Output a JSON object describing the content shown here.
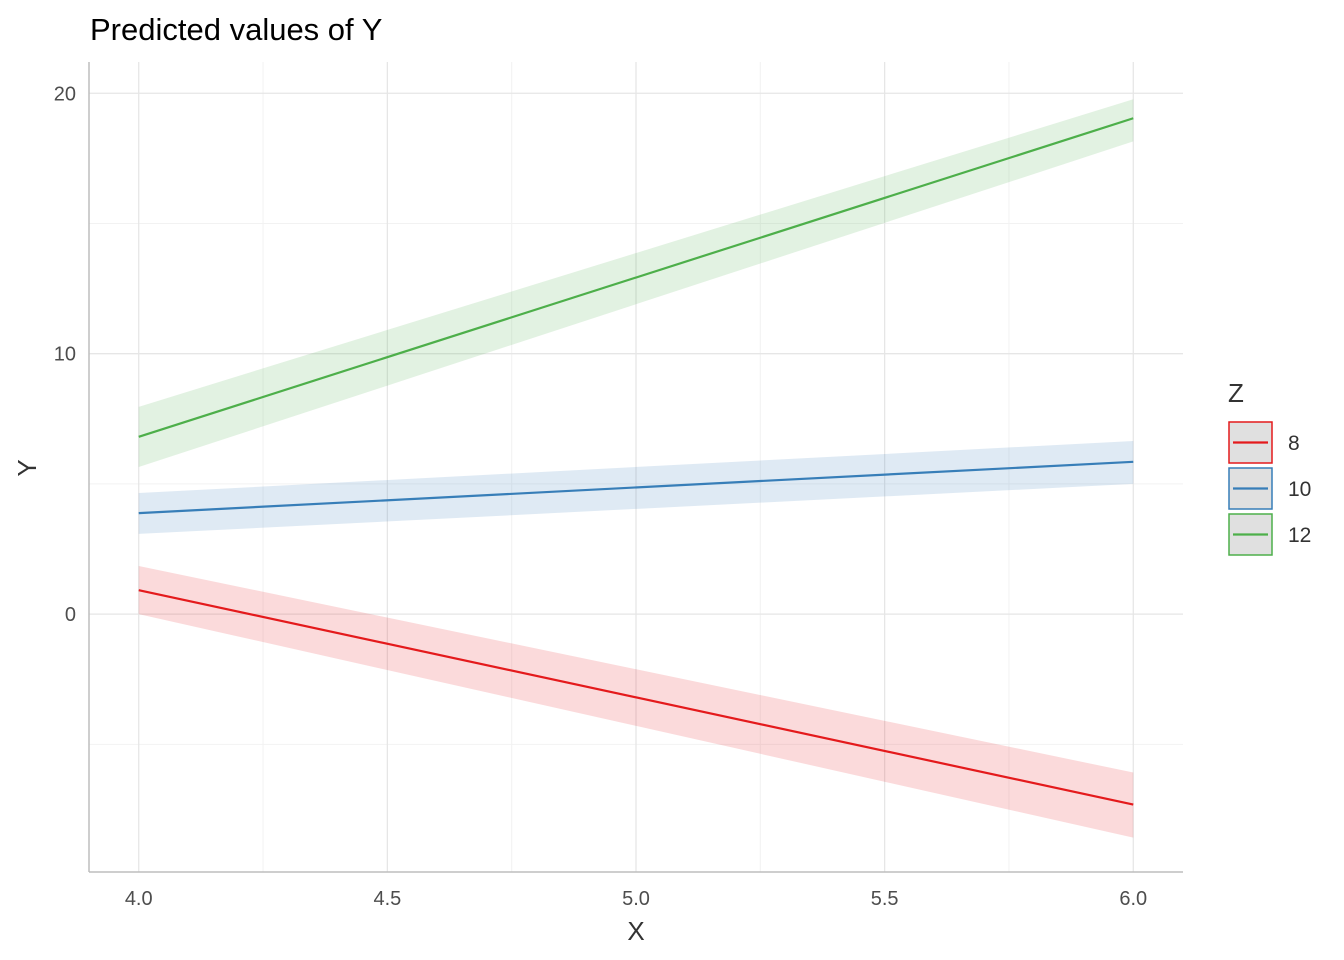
{
  "chart_data": {
    "type": "line",
    "title": "Predicted values of Y",
    "xlabel": "X",
    "ylabel": "Y",
    "xlim": [
      3.9,
      6.1
    ],
    "ylim": [
      -9.9,
      21.2
    ],
    "x_ticks": [
      "4.0",
      "4.5",
      "5.0",
      "5.5",
      "6.0"
    ],
    "x_tick_values": [
      4.0,
      4.5,
      5.0,
      5.5,
      6.0
    ],
    "y_ticks": [
      "0",
      "10",
      "20"
    ],
    "y_tick_values": [
      0,
      10,
      20
    ],
    "grid": true,
    "legend": {
      "title": "Z",
      "placement": "right"
    },
    "x": [
      4.0,
      6.0
    ],
    "series": [
      {
        "name": "8",
        "color": "#E41A1C",
        "values": [
          0.92,
          -7.31
        ],
        "ci_low": [
          0.0,
          -8.58
        ],
        "ci_high": [
          1.85,
          -6.08
        ]
      },
      {
        "name": "10",
        "color": "#377EB8",
        "values": [
          3.88,
          5.85
        ],
        "ci_low": [
          3.08,
          5.0
        ],
        "ci_high": [
          4.65,
          6.65
        ]
      },
      {
        "name": "12",
        "color": "#4DAF4A",
        "values": [
          6.81,
          19.04
        ],
        "ci_low": [
          5.65,
          18.15
        ],
        "ci_high": [
          7.96,
          19.77
        ]
      }
    ]
  }
}
